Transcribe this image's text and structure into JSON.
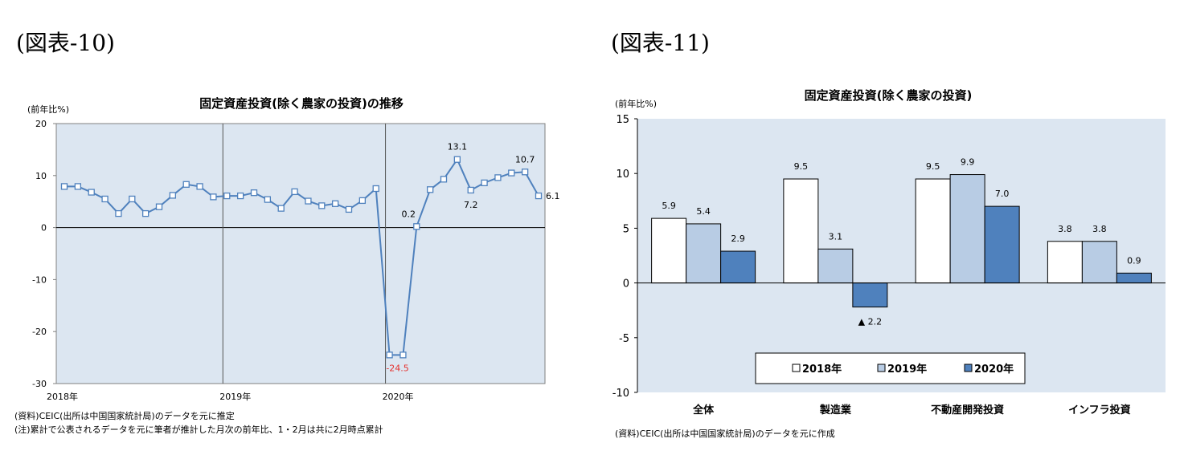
{
  "left": {
    "figure_label": "(図表-10)",
    "notes": [
      "(資料)CEIC(出所は中国国家統計局)のデータを元に推定",
      "(注)累計で公表されるデータを元に筆者が推計した月次の前年比、1・2月は共に2月時点累計"
    ]
  },
  "right": {
    "figure_label": "(図表-11)",
    "notes": [
      "(資料)CEIC(出所は中国国家統計局)のデータを元に作成"
    ]
  },
  "chart_data": [
    {
      "type": "line",
      "title": "固定資産投資(除く農家の投資)の推移",
      "ylabel": "(前年比%)",
      "ylim": [
        -30,
        20
      ],
      "yticks": [
        20,
        10,
        0,
        -10,
        -20,
        -30
      ],
      "x_tick_labels": [
        "2018年",
        "2019年",
        "2020年"
      ],
      "x_tick_index": [
        0,
        12,
        24
      ],
      "grid": false,
      "series": [
        {
          "values": [
            7.9,
            7.9,
            6.8,
            5.5,
            2.7,
            5.5,
            2.7,
            4.0,
            6.2,
            8.3,
            7.9,
            5.9,
            6.1,
            6.1,
            6.7,
            5.4,
            3.7,
            6.9,
            5.1,
            4.2,
            4.6,
            3.5,
            5.2,
            7.5,
            -24.5,
            -24.5,
            0.2,
            7.3,
            9.3,
            13.1,
            7.2,
            8.6,
            9.6,
            10.5,
            10.7,
            6.1
          ]
        }
      ],
      "data_labels": [
        {
          "index": 24,
          "text": "-24.5"
        },
        {
          "index": 26,
          "text": "0.2"
        },
        {
          "index": 29,
          "text": "13.1"
        },
        {
          "index": 30,
          "text": "7.2"
        },
        {
          "index": 34,
          "text": "10.7"
        },
        {
          "index": 35,
          "text": "6.1"
        }
      ],
      "colors": {
        "line": "#4f81bd",
        "highlight_label": "#e5322e",
        "plot_bg": "#dce6f1"
      }
    },
    {
      "type": "bar",
      "title": "固定資産投資(除く農家の投資)",
      "ylabel": "(前年比%)",
      "ylim": [
        -10,
        15
      ],
      "yticks": [
        15,
        10,
        5,
        0,
        -5,
        -10
      ],
      "categories": [
        "全体",
        "製造業",
        "不動産開発投資",
        "インフラ投資"
      ],
      "series": [
        {
          "name": "2018年",
          "values": [
            5.9,
            9.5,
            9.5,
            3.8
          ],
          "labels": [
            "5.9",
            "9.5",
            "9.5",
            "3.8"
          ],
          "color": "#ffffff"
        },
        {
          "name": "2019年",
          "values": [
            5.4,
            3.1,
            9.9,
            3.8
          ],
          "labels": [
            "5.4",
            "3.1",
            "9.9",
            "3.8"
          ],
          "color": "#b8cce4"
        },
        {
          "name": "2020年",
          "values": [
            2.9,
            -2.2,
            7.0,
            0.9
          ],
          "labels": [
            "2.9",
            "▲ 2.2",
            "7.0",
            "0.9"
          ],
          "color": "#4f81bd"
        }
      ],
      "legend_position": "bottom-center",
      "grid": false,
      "colors": {
        "plot_bg": "#dce6f1"
      }
    }
  ]
}
